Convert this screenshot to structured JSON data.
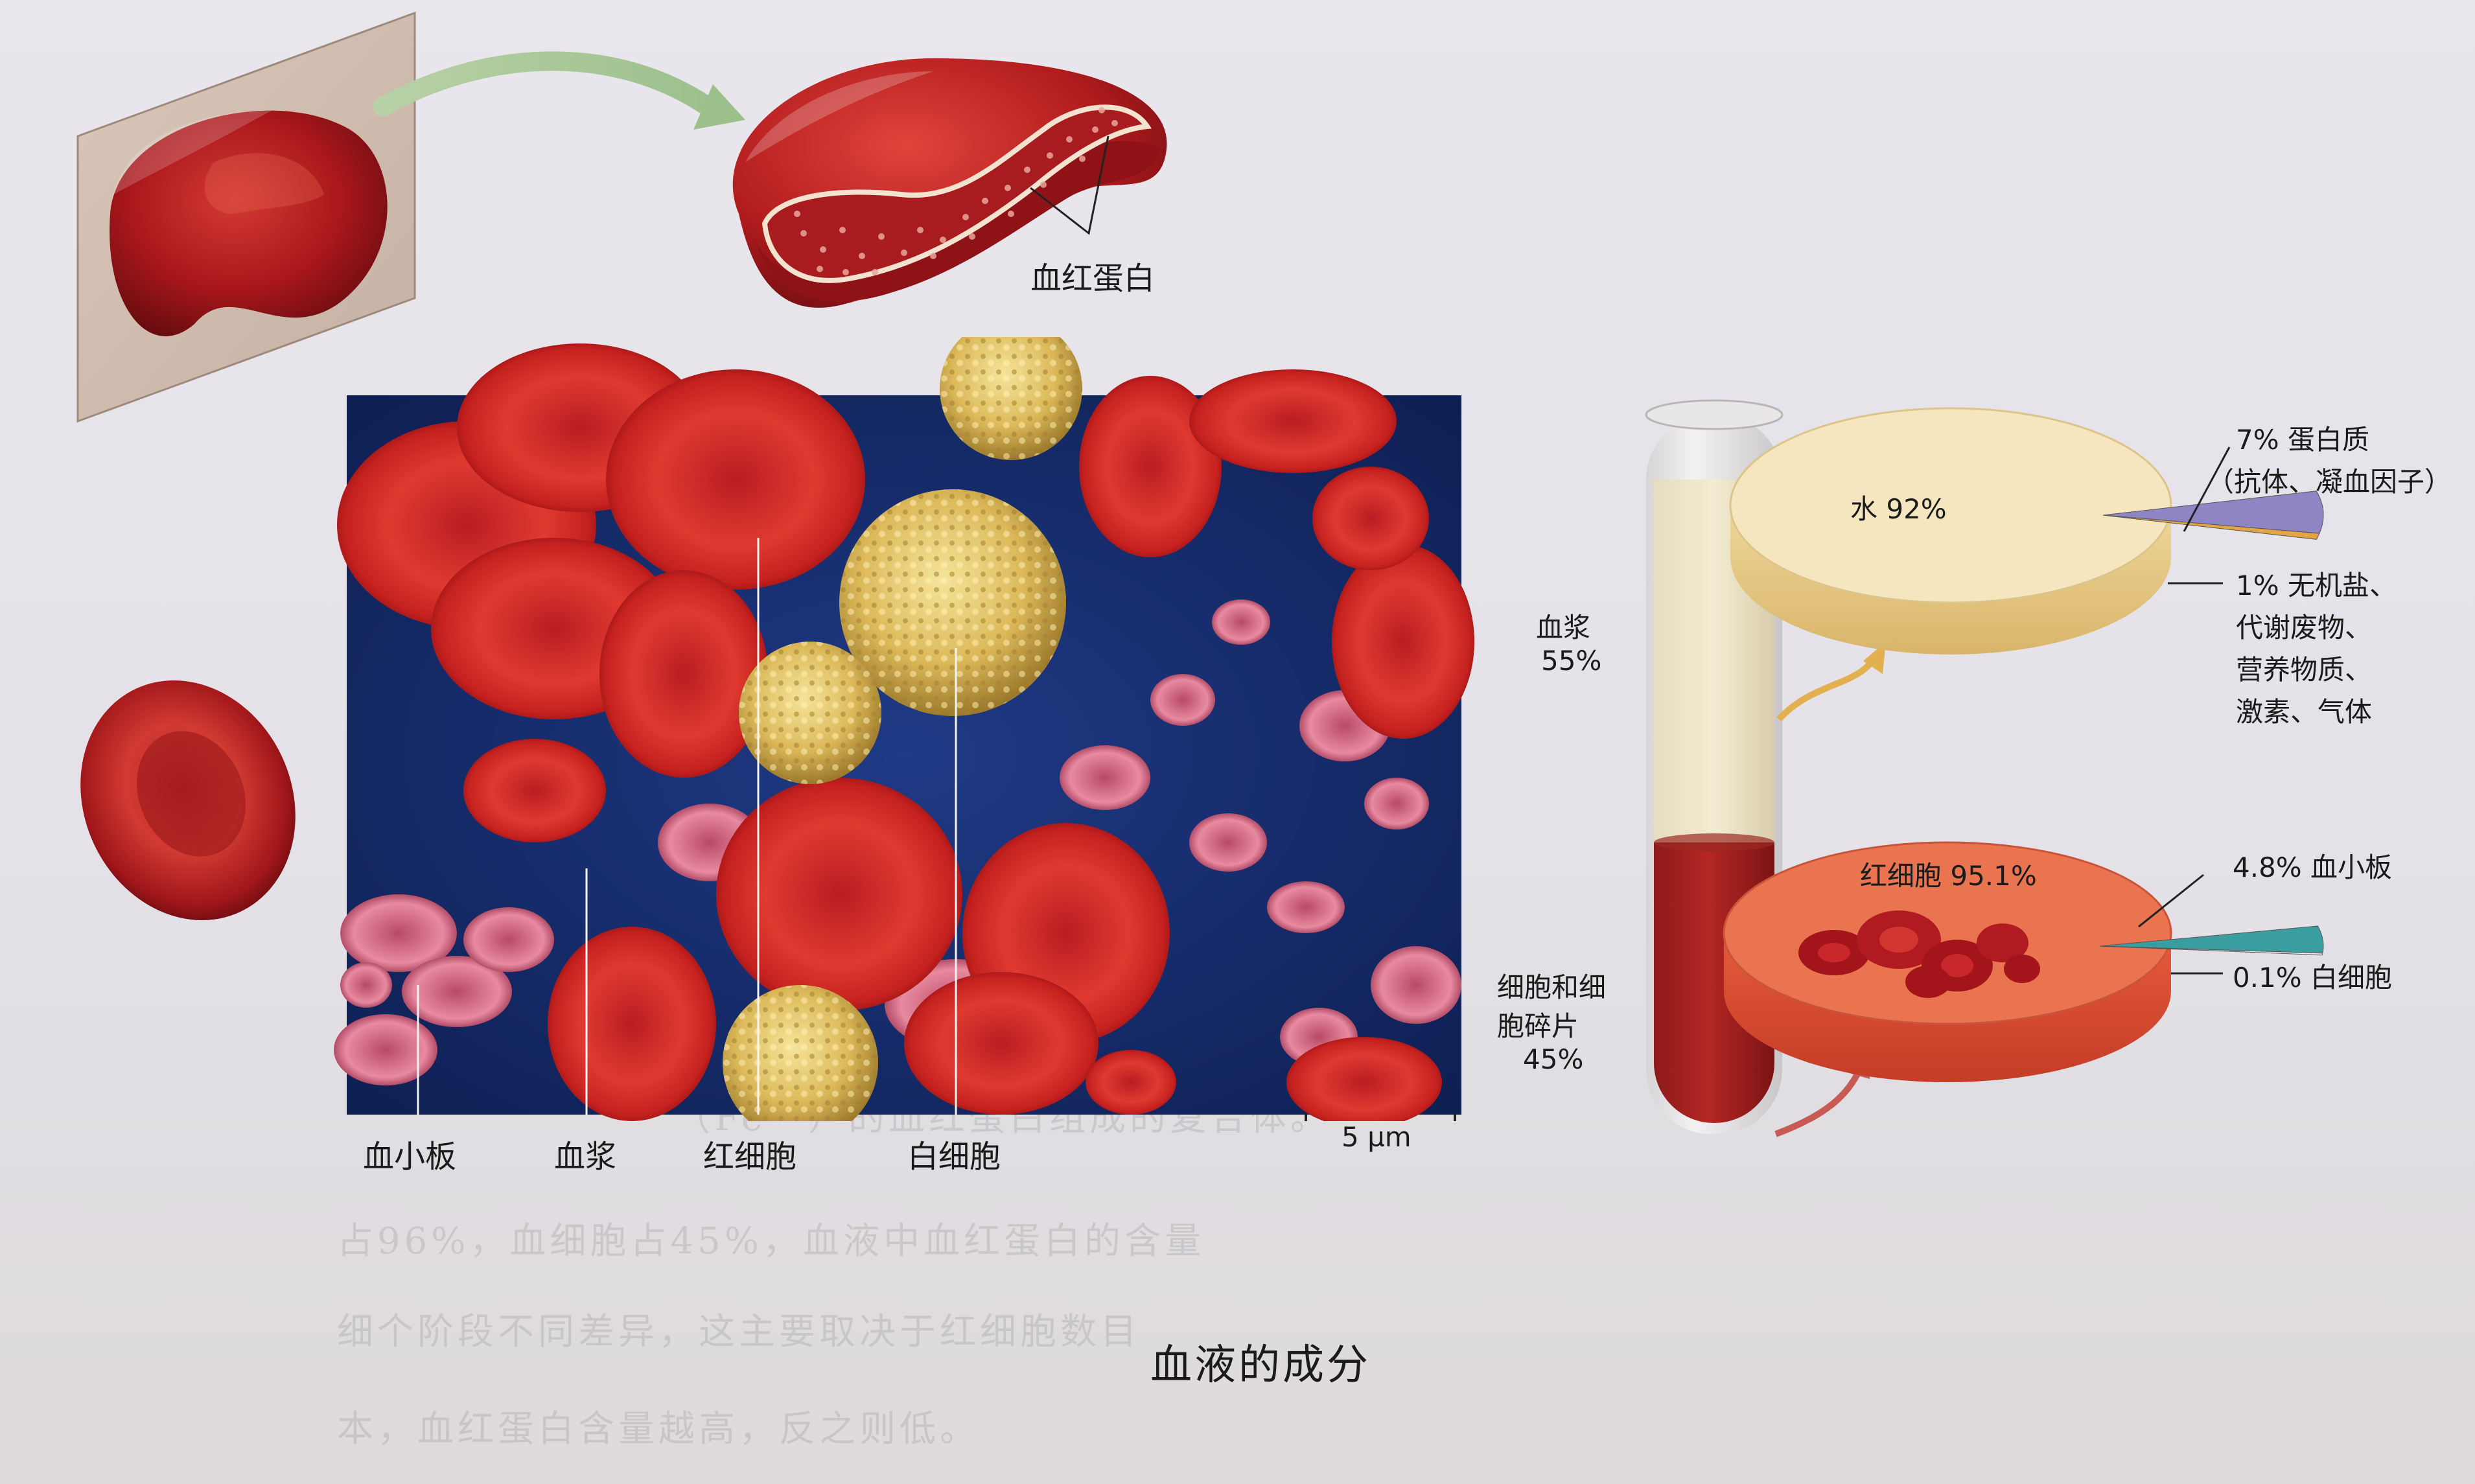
{
  "caption": "血液的成分",
  "rbc_detail": {
    "hemoglobin_label": "血红蛋白"
  },
  "micrograph": {
    "labels": {
      "platelet": "血小板",
      "plasma": "血浆",
      "red_cell": "红细胞",
      "white_cell": "白细胞"
    },
    "scale_bar": "5 µm"
  },
  "test_tube": {
    "plasma": {
      "label": "血浆",
      "percent": "55%"
    },
    "cells": {
      "label_line1": "细胞和细",
      "label_line2": "胞碎片",
      "percent": "45%"
    }
  },
  "chart_data": [
    {
      "type": "pie",
      "name": "血浆",
      "slices": [
        {
          "label": "水",
          "value": 92,
          "display": "水 92%",
          "color": "#f4e3b4"
        },
        {
          "label": "蛋白质（抗体、凝血因子）",
          "value": 7,
          "display_line1": "7% 蛋白质",
          "display_line2": "（抗体、凝血因子）",
          "color": "#8f84c4"
        },
        {
          "label": "无机盐、代谢废物、营养物质、激素、气体",
          "value": 1,
          "display_lines": [
            "1% 无机盐、",
            "代谢废物、",
            "营养物质、",
            "激素、气体"
          ],
          "color": "#e3a447"
        }
      ]
    },
    {
      "type": "pie",
      "name": "细胞和细胞碎片",
      "slices": [
        {
          "label": "红细胞",
          "value": 95.1,
          "display": "红细胞 95.1%",
          "color": "#e7714e"
        },
        {
          "label": "血小板",
          "value": 4.8,
          "display": "4.8% 血小板",
          "color": "#3a9da0"
        },
        {
          "label": "白细胞",
          "value": 0.1,
          "display": "0.1% 白细胞",
          "color": "#f1f1f1"
        }
      ]
    }
  ],
  "background_text": {
    "line1": "（Fe²⁺）的血红蛋白组成的复合体。",
    "line2": "占96%，血细胞占45%，血液中血红蛋白的含量",
    "line3": "细个阶段不同差异，这主要取决于红细胞数目",
    "line4": "本，血红蛋白含量越高，反之则低。"
  }
}
